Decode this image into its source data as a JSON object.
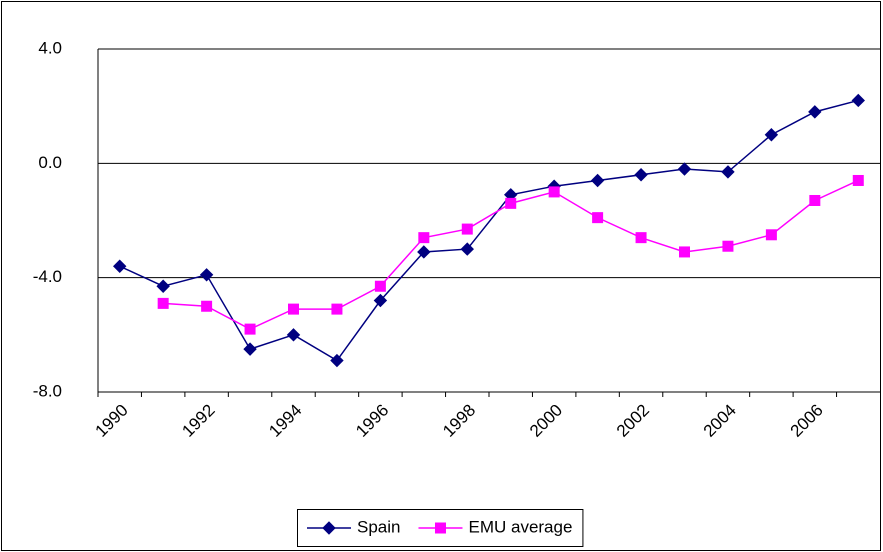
{
  "chart_data": {
    "type": "line",
    "categories": [
      "1990",
      null,
      "1992",
      null,
      "1994",
      null,
      "1996",
      null,
      "1998",
      null,
      "2000",
      null,
      "2002",
      null,
      "2004",
      null,
      "2006",
      null
    ],
    "series": [
      {
        "name": "Spain",
        "color": "#000080",
        "marker": "diamond",
        "values": [
          -3.6,
          -4.3,
          -3.9,
          -6.5,
          -6.0,
          -6.9,
          -4.8,
          -3.1,
          -3.0,
          -1.1,
          -0.8,
          -0.6,
          -0.4,
          -0.2,
          -0.3,
          1.0,
          1.8,
          2.2
        ]
      },
      {
        "name": "EMU average",
        "color": "#ff00ff",
        "marker": "square",
        "values": [
          null,
          -4.9,
          -5.0,
          -5.8,
          -5.1,
          -5.1,
          -4.3,
          -2.6,
          -2.3,
          -1.4,
          -1.0,
          -1.9,
          -2.6,
          -3.1,
          -2.9,
          -2.5,
          -1.3,
          -0.6
        ]
      }
    ],
    "ylim": [
      -8,
      4
    ],
    "yticks": [
      {
        "value": 4,
        "label": "4.0"
      },
      {
        "value": 0,
        "label": "0.0"
      },
      {
        "value": -4,
        "label": "-4.0"
      },
      {
        "value": -8,
        "label": "-8.0"
      }
    ],
    "grid": true,
    "legend": "bottom"
  }
}
